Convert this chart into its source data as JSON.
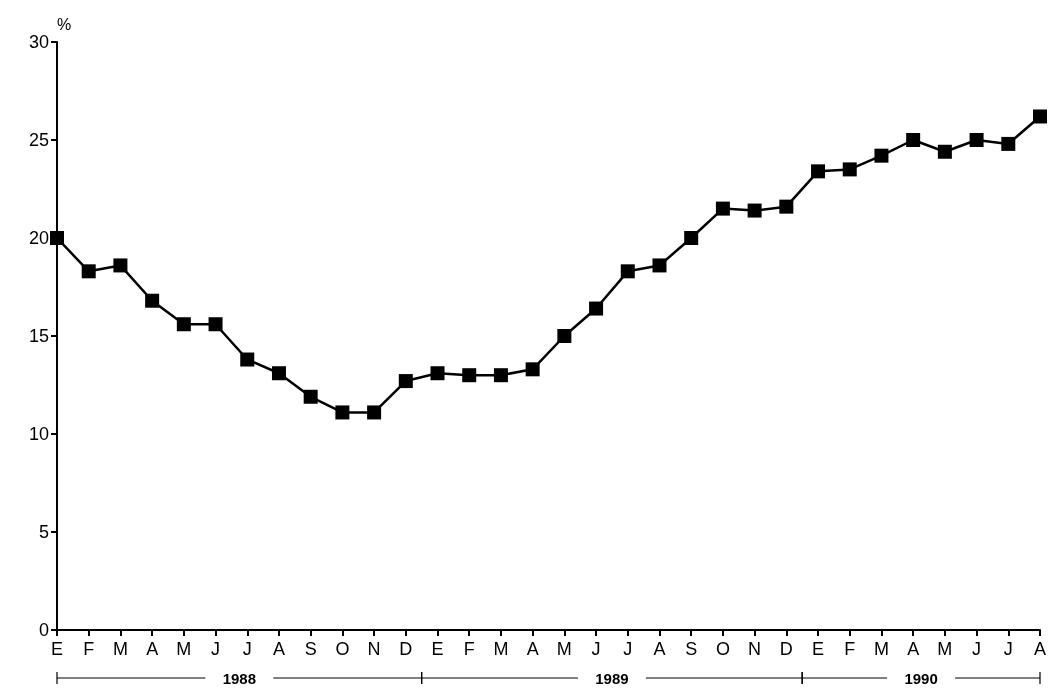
{
  "chart_data": {
    "type": "line",
    "ylabel": "%",
    "categories": [
      "E",
      "F",
      "M",
      "A",
      "M",
      "J",
      "J",
      "A",
      "S",
      "O",
      "N",
      "D",
      "E",
      "F",
      "M",
      "A",
      "M",
      "J",
      "J",
      "A",
      "S",
      "O",
      "N",
      "D",
      "E",
      "F",
      "M",
      "A",
      "M",
      "J",
      "J",
      "A"
    ],
    "series": [
      {
        "color": "#000000",
        "values": [
          20.0,
          18.3,
          18.6,
          16.8,
          15.6,
          15.6,
          13.8,
          13.1,
          11.9,
          11.1,
          11.1,
          12.7,
          13.1,
          13.0,
          13.0,
          13.3,
          15.0,
          16.4,
          18.3,
          18.6,
          20.0,
          21.5,
          21.4,
          21.6,
          23.4,
          23.5,
          24.2,
          25.0,
          24.4,
          25.0,
          24.8,
          26.2
        ]
      }
    ],
    "ylim": [
      0,
      30
    ],
    "yticks": [
      0,
      5,
      10,
      15,
      20,
      25,
      30
    ],
    "annotations": [
      "1988",
      "1989",
      "1990"
    ],
    "grid": false,
    "marker": "square",
    "line_style": "solid"
  }
}
